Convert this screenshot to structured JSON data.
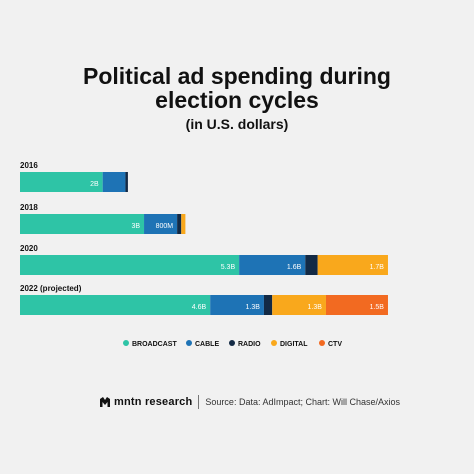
{
  "title_line1": "Political ad spending during",
  "title_line2": "election cycles",
  "subtitle": "(in U.S. dollars)",
  "footer": {
    "brand": "mntn research",
    "source": "Source: Data: AdImpact; Chart: Will Chase/Axios"
  },
  "colors": {
    "broadcast": "#2ec4a6",
    "cable": "#1e73b5",
    "radio": "#132a45",
    "digital": "#f9a81c",
    "ctv": "#f26a21"
  },
  "chart_data": {
    "type": "bar",
    "orientation": "horizontal",
    "stacked": true,
    "title": "Political ad spending during election cycles",
    "subtitle": "(in U.S. dollars)",
    "unit": "billion USD",
    "categories": [
      "2016",
      "2018",
      "2020",
      "2022 (projected)"
    ],
    "series": [
      {
        "name": "BROADCAST",
        "key": "broadcast",
        "values": [
          2.0,
          3.0,
          5.3,
          4.6
        ],
        "labels": [
          "2B",
          "3B",
          "5.3B",
          "4.6B"
        ]
      },
      {
        "name": "CABLE",
        "key": "cable",
        "values": [
          0.55,
          0.8,
          1.6,
          1.3
        ],
        "labels": [
          "",
          "800M",
          "1.6B",
          "1.3B"
        ]
      },
      {
        "name": "RADIO",
        "key": "radio",
        "values": [
          0.06,
          0.1,
          0.3,
          0.2
        ],
        "labels": [
          "",
          "",
          "",
          ""
        ]
      },
      {
        "name": "DIGITAL",
        "key": "digital",
        "values": [
          0.0,
          0.1,
          1.7,
          1.3
        ],
        "labels": [
          "",
          "",
          "1.7B",
          "1.3B"
        ]
      },
      {
        "name": "CTV",
        "key": "ctv",
        "values": [
          0.0,
          0.0,
          0.0,
          1.5
        ],
        "labels": [
          "",
          "",
          "",
          "1.5B"
        ]
      }
    ],
    "legend_position": "bottom",
    "grid": false
  }
}
